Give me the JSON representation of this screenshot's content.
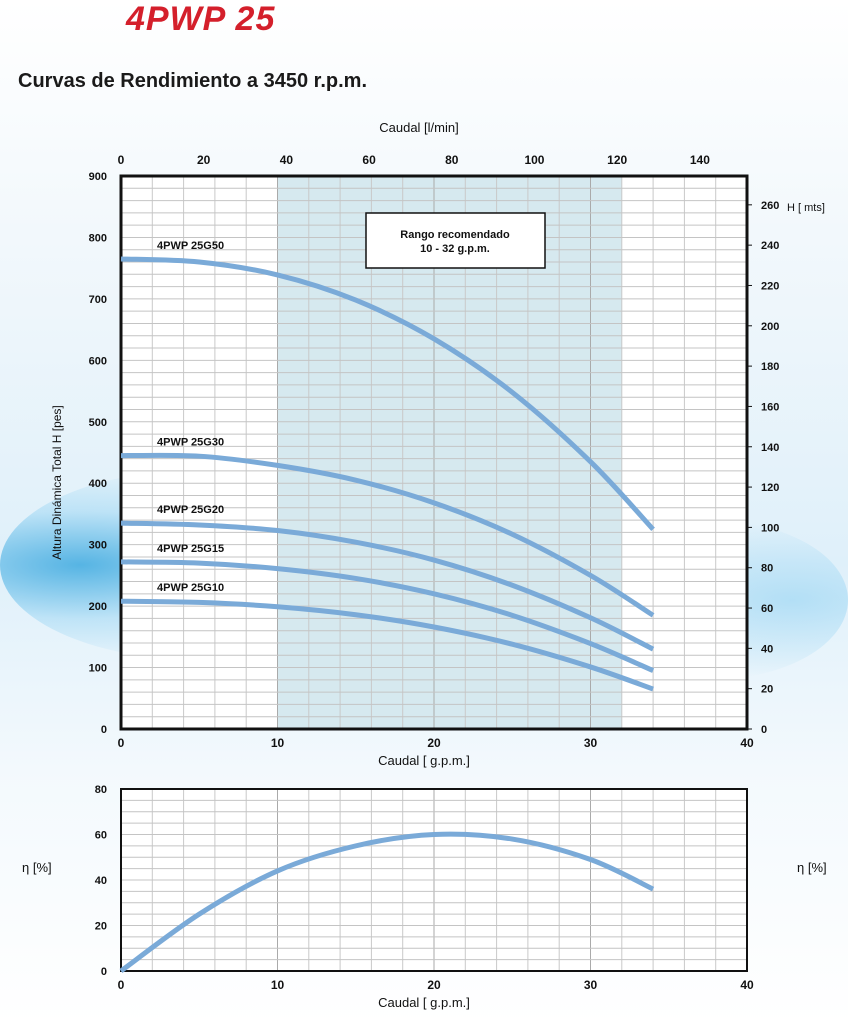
{
  "title": "4PWP 25",
  "subtitle": "Curvas de Rendimiento a 3450 r.p.m.",
  "colors": {
    "curve": "#7aaad8",
    "shade": "#d6e9ef",
    "title": "#d41f2b"
  },
  "chart_data": [
    {
      "type": "line",
      "title": "Curvas de Rendimiento a 3450 r.p.m.",
      "xlabel": "Caudal [ g.p.m.]",
      "x2label": "Caudal [l/min]",
      "ylabel": "Altura Dinámica Total H [pes]",
      "y2label": "H [ mts]",
      "xlim": [
        0,
        40
      ],
      "ylim": [
        0,
        900
      ],
      "x2lim": [
        0,
        151.4
      ],
      "y2lim": [
        0,
        274.3
      ],
      "xticks": [
        0,
        10,
        20,
        30,
        40
      ],
      "yticks": [
        0,
        100,
        200,
        300,
        400,
        500,
        600,
        700,
        800,
        900
      ],
      "x2ticks": [
        0,
        20,
        40,
        60,
        80,
        100,
        120,
        140
      ],
      "y2ticks": [
        0,
        20,
        40,
        60,
        80,
        100,
        120,
        140,
        160,
        180,
        200,
        220,
        240,
        260
      ],
      "grid": true,
      "recommended_range": {
        "label": "Rango recomendado",
        "range_label": "10 - 32 g.p.m.",
        "from": 10,
        "to": 32
      },
      "x": [
        0,
        5,
        10,
        15,
        20,
        25,
        30,
        34
      ],
      "series": [
        {
          "name": "4PWP 25G50",
          "values": [
            765,
            760,
            739,
            698,
            635,
            548,
            435,
            325
          ]
        },
        {
          "name": "4PWP 25G30",
          "values": [
            445,
            444,
            429,
            405,
            368,
            317,
            250,
            185
          ]
        },
        {
          "name": "4PWP 25G20",
          "values": [
            335,
            332,
            323,
            304,
            275,
            234,
            181,
            130
          ]
        },
        {
          "name": "4PWP 25G15",
          "values": [
            272,
            270,
            261,
            245,
            220,
            185,
            139,
            95
          ]
        },
        {
          "name": "4PWP 25G10",
          "values": [
            208,
            206,
            199,
            186,
            166,
            138,
            101,
            65
          ]
        }
      ]
    },
    {
      "type": "line",
      "xlabel": "Caudal [ g.p.m.]",
      "ylabel": "η [%]",
      "y2label": "η [%]",
      "xlim": [
        0,
        40
      ],
      "ylim": [
        0,
        80
      ],
      "xticks": [
        0,
        10,
        20,
        30,
        40
      ],
      "yticks": [
        0,
        20,
        40,
        60,
        80
      ],
      "grid": true,
      "x": [
        0,
        5,
        10,
        15,
        20,
        25,
        30,
        34
      ],
      "series": [
        {
          "name": "Eficiencia",
          "values": [
            0,
            25,
            44,
            55,
            60,
            58,
            49,
            36
          ]
        }
      ]
    }
  ]
}
